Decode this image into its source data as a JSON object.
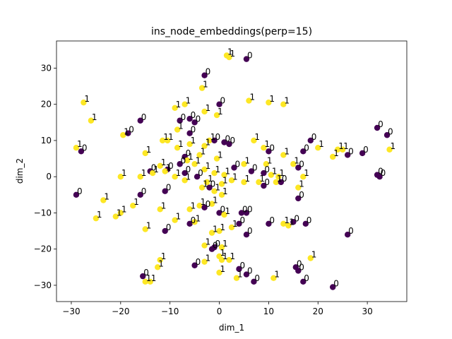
{
  "chart_data": {
    "type": "scatter",
    "title": "ins_node_embeddings(perp=15)",
    "xlabel": "dim_1",
    "ylabel": "dim_2",
    "xlim": [
      -33,
      38
    ],
    "ylim": [
      -34.5,
      37.5
    ],
    "xticks": [
      -30,
      -20,
      -10,
      0,
      10,
      20,
      30
    ],
    "yticks": [
      -30,
      -20,
      -10,
      0,
      10,
      20,
      30
    ],
    "grid": false,
    "colors": {
      "0": "#440154",
      "1": "#fde725"
    },
    "points": [
      {
        "x": 1.5,
        "y": 33.5,
        "label": "1"
      },
      {
        "x": 2.0,
        "y": 33.0,
        "label": "1"
      },
      {
        "x": 5.5,
        "y": 32.5,
        "label": "0"
      },
      {
        "x": -3.0,
        "y": 28.0,
        "label": "0"
      },
      {
        "x": -3.5,
        "y": 24.5,
        "label": "1"
      },
      {
        "x": -27.5,
        "y": 20.5,
        "label": "1"
      },
      {
        "x": -26.0,
        "y": 15.5,
        "label": "1"
      },
      {
        "x": -16.0,
        "y": 15.5,
        "label": "0"
      },
      {
        "x": -9.0,
        "y": 19.0,
        "label": "1"
      },
      {
        "x": -7.0,
        "y": 20.0,
        "label": "1"
      },
      {
        "x": -6.0,
        "y": 16.0,
        "label": "0"
      },
      {
        "x": -5.0,
        "y": 15.0,
        "label": "0"
      },
      {
        "x": -0.5,
        "y": 17.0,
        "label": "1"
      },
      {
        "x": 0.0,
        "y": 20.0,
        "label": "0"
      },
      {
        "x": 6.0,
        "y": 21.0,
        "label": "1"
      },
      {
        "x": 10.0,
        "y": 20.5,
        "label": "1"
      },
      {
        "x": 13.0,
        "y": 20.0,
        "label": "1"
      },
      {
        "x": -29.0,
        "y": 8.0,
        "label": "1"
      },
      {
        "x": -28.0,
        "y": 7.0,
        "label": "0"
      },
      {
        "x": -19.5,
        "y": 11.5,
        "label": "1"
      },
      {
        "x": -18.5,
        "y": 12.0,
        "label": "0"
      },
      {
        "x": -11.5,
        "y": 10.0,
        "label": "1"
      },
      {
        "x": -10.5,
        "y": 10.0,
        "label": "1"
      },
      {
        "x": -8.5,
        "y": 13.0,
        "label": "1"
      },
      {
        "x": -8.0,
        "y": 15.5,
        "label": "0"
      },
      {
        "x": -6.0,
        "y": 12.0,
        "label": "0"
      },
      {
        "x": -6.0,
        "y": 9.0,
        "label": "1"
      },
      {
        "x": -3.0,
        "y": 8.5,
        "label": "1"
      },
      {
        "x": -2.0,
        "y": 10.0,
        "label": "1"
      },
      {
        "x": -1.0,
        "y": 10.0,
        "label": "0"
      },
      {
        "x": 1.0,
        "y": 9.5,
        "label": "0"
      },
      {
        "x": 2.0,
        "y": 9.0,
        "label": "0"
      },
      {
        "x": 7.0,
        "y": 10.0,
        "label": "1"
      },
      {
        "x": 9.0,
        "y": 8.0,
        "label": "1"
      },
      {
        "x": 10.0,
        "y": 7.0,
        "label": "0"
      },
      {
        "x": 13.0,
        "y": 6.0,
        "label": "1"
      },
      {
        "x": 18.5,
        "y": 10.0,
        "label": "0"
      },
      {
        "x": 20.0,
        "y": 8.0,
        "label": "1"
      },
      {
        "x": 17.0,
        "y": 7.0,
        "label": "0"
      },
      {
        "x": 24.0,
        "y": 7.5,
        "label": "1"
      },
      {
        "x": 25.0,
        "y": 7.5,
        "label": "1"
      },
      {
        "x": 26.0,
        "y": 6.0,
        "label": "0"
      },
      {
        "x": 29.0,
        "y": 6.5,
        "label": "0"
      },
      {
        "x": 32.0,
        "y": 13.5,
        "label": "0"
      },
      {
        "x": 34.0,
        "y": 11.5,
        "label": "0"
      },
      {
        "x": 34.5,
        "y": 7.5,
        "label": "1"
      },
      {
        "x": 23.0,
        "y": 5.5,
        "label": "1"
      },
      {
        "x": -15.0,
        "y": 6.5,
        "label": "1"
      },
      {
        "x": -12.0,
        "y": 3.0,
        "label": "1"
      },
      {
        "x": -10.5,
        "y": 2.0,
        "label": "0"
      },
      {
        "x": -8.0,
        "y": 3.5,
        "label": "0"
      },
      {
        "x": -7.0,
        "y": 5.5,
        "label": "0"
      },
      {
        "x": -6.5,
        "y": 4.5,
        "label": "1"
      },
      {
        "x": -5.0,
        "y": 3.5,
        "label": "1"
      },
      {
        "x": -3.0,
        "y": 2.0,
        "label": "1"
      },
      {
        "x": -1.0,
        "y": 1.0,
        "label": "1"
      },
      {
        "x": 1.0,
        "y": 0.5,
        "label": "1"
      },
      {
        "x": 3.0,
        "y": 2.5,
        "label": "0"
      },
      {
        "x": 5.0,
        "y": 3.5,
        "label": "1"
      },
      {
        "x": 6.5,
        "y": 1.5,
        "label": "0"
      },
      {
        "x": 9.5,
        "y": 3.5,
        "label": "1"
      },
      {
        "x": 9.0,
        "y": 1.0,
        "label": "0"
      },
      {
        "x": 10.5,
        "y": 0.5,
        "label": "1"
      },
      {
        "x": 12.0,
        "y": 0.0,
        "label": "1"
      },
      {
        "x": 15.0,
        "y": 3.5,
        "label": "1"
      },
      {
        "x": 16.0,
        "y": 2.5,
        "label": "0"
      },
      {
        "x": -20.0,
        "y": 0.0,
        "label": "1"
      },
      {
        "x": -16.0,
        "y": 0.0,
        "label": "1"
      },
      {
        "x": -14.0,
        "y": 1.5,
        "label": "0"
      },
      {
        "x": -13.5,
        "y": 1.0,
        "label": "1"
      },
      {
        "x": -11.0,
        "y": 1.5,
        "label": "1"
      },
      {
        "x": -9.0,
        "y": 0.0,
        "label": "1"
      },
      {
        "x": -7.0,
        "y": -1.0,
        "label": "1"
      },
      {
        "x": -4.5,
        "y": 0.0,
        "label": "0"
      },
      {
        "x": -2.5,
        "y": -1.5,
        "label": "1"
      },
      {
        "x": -3.5,
        "y": -3.0,
        "label": "1"
      },
      {
        "x": 0.5,
        "y": -2.0,
        "label": "1"
      },
      {
        "x": 2.5,
        "y": -1.0,
        "label": "1"
      },
      {
        "x": 5.0,
        "y": -1.5,
        "label": "1"
      },
      {
        "x": 8.0,
        "y": -1.5,
        "label": "1"
      },
      {
        "x": 9.0,
        "y": -2.5,
        "label": "0"
      },
      {
        "x": 11.5,
        "y": -1.5,
        "label": "1"
      },
      {
        "x": 12.5,
        "y": -1.5,
        "label": "0"
      },
      {
        "x": 16.0,
        "y": -3.0,
        "label": "1"
      },
      {
        "x": -29.0,
        "y": -5.0,
        "label": "0"
      },
      {
        "x": -23.5,
        "y": -6.5,
        "label": "1"
      },
      {
        "x": -16.0,
        "y": -5.0,
        "label": "0"
      },
      {
        "x": -11.0,
        "y": -4.0,
        "label": "0"
      },
      {
        "x": -1.0,
        "y": -4.0,
        "label": "1"
      },
      {
        "x": 0.5,
        "y": -5.0,
        "label": "1"
      },
      {
        "x": 16.0,
        "y": -6.0,
        "label": "0"
      },
      {
        "x": -25.0,
        "y": -11.5,
        "label": "1"
      },
      {
        "x": -21.0,
        "y": -11.0,
        "label": "1"
      },
      {
        "x": -20.0,
        "y": -10.0,
        "label": "1"
      },
      {
        "x": -17.5,
        "y": -8.0,
        "label": "1"
      },
      {
        "x": -12.0,
        "y": -9.0,
        "label": "1"
      },
      {
        "x": -9.0,
        "y": -12.0,
        "label": "1"
      },
      {
        "x": -6.0,
        "y": -9.0,
        "label": "1"
      },
      {
        "x": -4.0,
        "y": -8.0,
        "label": "1"
      },
      {
        "x": -3.0,
        "y": -8.5,
        "label": "0"
      },
      {
        "x": -1.5,
        "y": -7.5,
        "label": "1"
      },
      {
        "x": 0.0,
        "y": -10.0,
        "label": "0"
      },
      {
        "x": 1.0,
        "y": -10.5,
        "label": "1"
      },
      {
        "x": 4.5,
        "y": -10.0,
        "label": "0"
      },
      {
        "x": 5.5,
        "y": -10.0,
        "label": "0"
      },
      {
        "x": -6.0,
        "y": -13.0,
        "label": "0"
      },
      {
        "x": -5.0,
        "y": -12.5,
        "label": "1"
      },
      {
        "x": -15.0,
        "y": -14.5,
        "label": "1"
      },
      {
        "x": -11.0,
        "y": -15.0,
        "label": "0"
      },
      {
        "x": -1.5,
        "y": -15.5,
        "label": "1"
      },
      {
        "x": 0.0,
        "y": -15.0,
        "label": "1"
      },
      {
        "x": 2.5,
        "y": -14.0,
        "label": "1"
      },
      {
        "x": 4.0,
        "y": -13.0,
        "label": "0"
      },
      {
        "x": 5.5,
        "y": -16.0,
        "label": "0"
      },
      {
        "x": 10.0,
        "y": -13.0,
        "label": "0"
      },
      {
        "x": 13.0,
        "y": -13.0,
        "label": "1"
      },
      {
        "x": 14.0,
        "y": -13.5,
        "label": "1"
      },
      {
        "x": 15.0,
        "y": -12.5,
        "label": "0"
      },
      {
        "x": 17.5,
        "y": -13.0,
        "label": "0"
      },
      {
        "x": 26.0,
        "y": -16.0,
        "label": "0"
      },
      {
        "x": -3.0,
        "y": -19.0,
        "label": "1"
      },
      {
        "x": -1.5,
        "y": -20.0,
        "label": "0"
      },
      {
        "x": -1.0,
        "y": -19.5,
        "label": "0"
      },
      {
        "x": 0.5,
        "y": -19.5,
        "label": "1"
      },
      {
        "x": 0.0,
        "y": -22.0,
        "label": "1"
      },
      {
        "x": 0.5,
        "y": -23.0,
        "label": "1"
      },
      {
        "x": 2.0,
        "y": -23.0,
        "label": "1"
      },
      {
        "x": -3.0,
        "y": -23.5,
        "label": "1"
      },
      {
        "x": -12.0,
        "y": -23.0,
        "label": "1"
      },
      {
        "x": -12.5,
        "y": -25.0,
        "label": "1"
      },
      {
        "x": -5.0,
        "y": -24.5,
        "label": "0"
      },
      {
        "x": 0.0,
        "y": -26.5,
        "label": "1"
      },
      {
        "x": 3.5,
        "y": -28.0,
        "label": "1"
      },
      {
        "x": 4.0,
        "y": -25.5,
        "label": "0"
      },
      {
        "x": 5.5,
        "y": -27.0,
        "label": "0"
      },
      {
        "x": 7.0,
        "y": -29.0,
        "label": "0"
      },
      {
        "x": 11.0,
        "y": -28.0,
        "label": "1"
      },
      {
        "x": 15.5,
        "y": -25.0,
        "label": "0"
      },
      {
        "x": 16.0,
        "y": -26.0,
        "label": "0"
      },
      {
        "x": 18.5,
        "y": -22.5,
        "label": "1"
      },
      {
        "x": 17.0,
        "y": -29.0,
        "label": "0"
      },
      {
        "x": 23.0,
        "y": -30.5,
        "label": "0"
      },
      {
        "x": -15.5,
        "y": -27.5,
        "label": "0"
      },
      {
        "x": -15.0,
        "y": -29.0,
        "label": "1"
      },
      {
        "x": -14.0,
        "y": -29.0,
        "label": "1"
      },
      {
        "x": 32.0,
        "y": 0.5,
        "label": "0"
      },
      {
        "x": 32.5,
        "y": 0.0,
        "label": "0"
      },
      {
        "x": -3.0,
        "y": 18.0,
        "label": "1"
      },
      {
        "x": -8.5,
        "y": 8.0,
        "label": "1"
      },
      {
        "x": -4.0,
        "y": 6.0,
        "label": "1"
      },
      {
        "x": -0.5,
        "y": 5.0,
        "label": "1"
      },
      {
        "x": -7.0,
        "y": 1.0,
        "label": "0"
      },
      {
        "x": -2.0,
        "y": -3.0,
        "label": "0"
      },
      {
        "x": 17.0,
        "y": 0.0,
        "label": "1"
      }
    ]
  }
}
